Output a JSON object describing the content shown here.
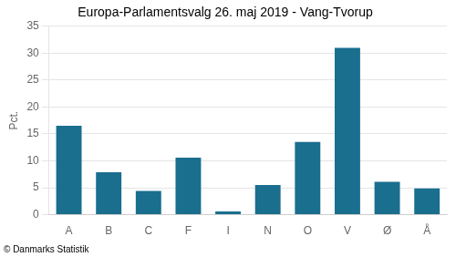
{
  "chart_data": {
    "type": "bar",
    "title": "Europa-Parlamentsvalg 26. maj 2019 - Vang-Tvorup",
    "ylabel": "Pct.",
    "annotations": [
      "© Danmarks Statistik"
    ],
    "categories": [
      "A",
      "B",
      "C",
      "F",
      "I",
      "N",
      "O",
      "V",
      "Ø",
      "Å"
    ],
    "values": [
      16.5,
      7.9,
      4.4,
      10.6,
      0.6,
      5.5,
      13.5,
      31.0,
      6.1,
      4.9
    ],
    "color": "#1a6e8e",
    "ylim": [
      0,
      35
    ],
    "yticks": [
      0,
      5,
      10,
      15,
      20,
      25,
      30,
      35
    ],
    "grid": true
  }
}
